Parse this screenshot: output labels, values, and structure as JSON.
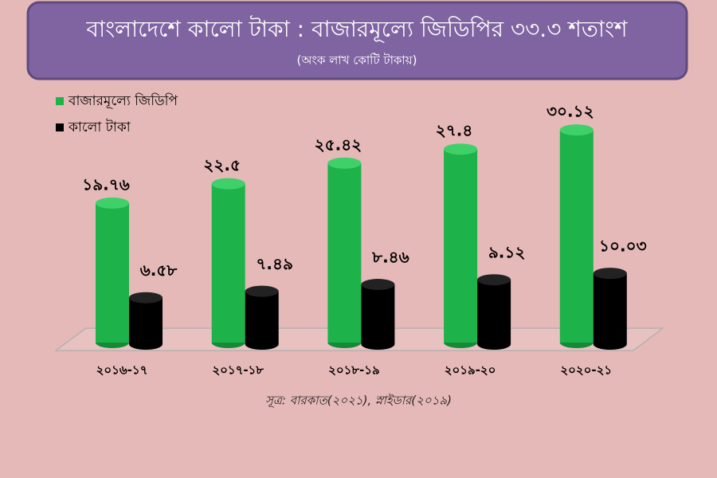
{
  "chart_data": {
    "type": "bar",
    "title": "বাংলাদেশে কালো টাকা : বাজারমূল্যে জিডিপির ৩৩.৩ শতাংশ",
    "subtitle": "(অংক লাখ কোটি টাকায়)",
    "categories": [
      "২০১৬-১৭",
      "২০১৭-১৮",
      "২০১৮-১৯",
      "২০১৯-২০",
      "২০২০-২১"
    ],
    "series": [
      {
        "name": "বাজারমূল্যে জিডিপি",
        "color": "#1db24a",
        "values": [
          19.76,
          22.5,
          25.42,
          27.4,
          30.12
        ],
        "value_labels": [
          "১৯.৭৬",
          "২২.৫",
          "২৫.৪২",
          "২৭.৪",
          "৩০.১২"
        ]
      },
      {
        "name": "কালো টাকা",
        "color": "#000000",
        "values": [
          6.58,
          7.49,
          8.46,
          9.12,
          10.03
        ],
        "value_labels": [
          "৬.৫৮",
          "৭.৪৯",
          "৮.৪৬",
          "৯.১২",
          "১০.০৩"
        ]
      }
    ],
    "source": "সূত্র: বারকাত(২০২১), স্নাইডার(২০১৯)"
  }
}
